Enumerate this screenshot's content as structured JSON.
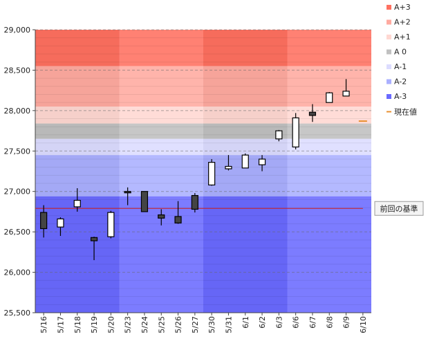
{
  "chart_data": {
    "type": "candlestick",
    "ylim": [
      25500,
      29000
    ],
    "yticks": [
      "25,500",
      "26,000",
      "26,500",
      "27,000",
      "27,500",
      "28,000",
      "28,500",
      "29,000"
    ],
    "ytick_values": [
      25500,
      26000,
      26500,
      27000,
      27500,
      28000,
      28500,
      29000
    ],
    "categories": [
      "5/16",
      "5/17",
      "5/18",
      "5/19",
      "5/20",
      "5/23",
      "5/24",
      "5/25",
      "5/26",
      "5/27",
      "5/30",
      "5/31",
      "6/1",
      "6/2",
      "6/3",
      "6/6",
      "6/7",
      "6/8",
      "6/9",
      "6/10"
    ],
    "candles": [
      {
        "date": "5/16",
        "open": 26740,
        "high": 26830,
        "low": 26430,
        "close": 26540
      },
      {
        "date": "5/17",
        "open": 26560,
        "high": 26680,
        "low": 26450,
        "close": 26660
      },
      {
        "date": "5/18",
        "open": 26810,
        "high": 27040,
        "low": 26750,
        "close": 26890
      },
      {
        "date": "5/19",
        "open": 26430,
        "high": 26440,
        "low": 26150,
        "close": 26390
      },
      {
        "date": "5/20",
        "open": 26440,
        "high": 26760,
        "low": 26420,
        "close": 26740
      },
      {
        "date": "5/23",
        "open": 27000,
        "high": 27050,
        "low": 26830,
        "close": 26990
      },
      {
        "date": "5/24",
        "open": 27000,
        "high": 27000,
        "low": 26750,
        "close": 26750
      },
      {
        "date": "5/25",
        "open": 26710,
        "high": 26780,
        "low": 26580,
        "close": 26670
      },
      {
        "date": "5/26",
        "open": 26690,
        "high": 26880,
        "low": 26600,
        "close": 26610
      },
      {
        "date": "5/27",
        "open": 26950,
        "high": 26980,
        "low": 26740,
        "close": 26780
      },
      {
        "date": "5/30",
        "open": 27080,
        "high": 27400,
        "low": 27070,
        "close": 27360
      },
      {
        "date": "5/31",
        "open": 27280,
        "high": 27450,
        "low": 27260,
        "close": 27310
      },
      {
        "date": "6/1",
        "open": 27290,
        "high": 27470,
        "low": 27290,
        "close": 27450
      },
      {
        "date": "6/2",
        "open": 27330,
        "high": 27450,
        "low": 27250,
        "close": 27400
      },
      {
        "date": "6/3",
        "open": 27650,
        "high": 27760,
        "low": 27620,
        "close": 27750
      },
      {
        "date": "6/6",
        "open": 27550,
        "high": 27970,
        "low": 27520,
        "close": 27910
      },
      {
        "date": "6/7",
        "open": 27980,
        "high": 28080,
        "low": 27860,
        "close": 27940
      },
      {
        "date": "6/8",
        "open": 28100,
        "high": 28230,
        "low": 28100,
        "close": 28220
      },
      {
        "date": "6/9",
        "open": 28180,
        "high": 28390,
        "low": 28180,
        "close": 28240
      },
      {
        "date": "6/10",
        "open": null,
        "high": null,
        "low": null,
        "close": null
      }
    ],
    "bands": [
      {
        "name": "A+3",
        "from": 28550,
        "to": 29000,
        "color": "#ff7060"
      },
      {
        "name": "A+2",
        "from": 28050,
        "to": 28550,
        "color": "#ffaaa0"
      },
      {
        "name": "A+1",
        "from": 27840,
        "to": 28050,
        "color": "#ffd8d2"
      },
      {
        "name": "A 0",
        "from": 27650,
        "to": 27840,
        "color": "#c0c0c0"
      },
      {
        "name": "A-1",
        "from": 27450,
        "to": 27650,
        "color": "#dcdcff"
      },
      {
        "name": "A-2",
        "from": 26940,
        "to": 27450,
        "color": "#aab0ff"
      },
      {
        "name": "A-3",
        "from": 25500,
        "to": 26940,
        "color": "#6a6aff"
      }
    ],
    "current_value": {
      "label": "現在値",
      "value": 27870,
      "date": "6/10",
      "color": "#e89030"
    },
    "reference_line": {
      "label": "前回の基準",
      "value": 26790,
      "color": "#cc2020"
    },
    "grid": true,
    "legend_position": "top-right"
  }
}
